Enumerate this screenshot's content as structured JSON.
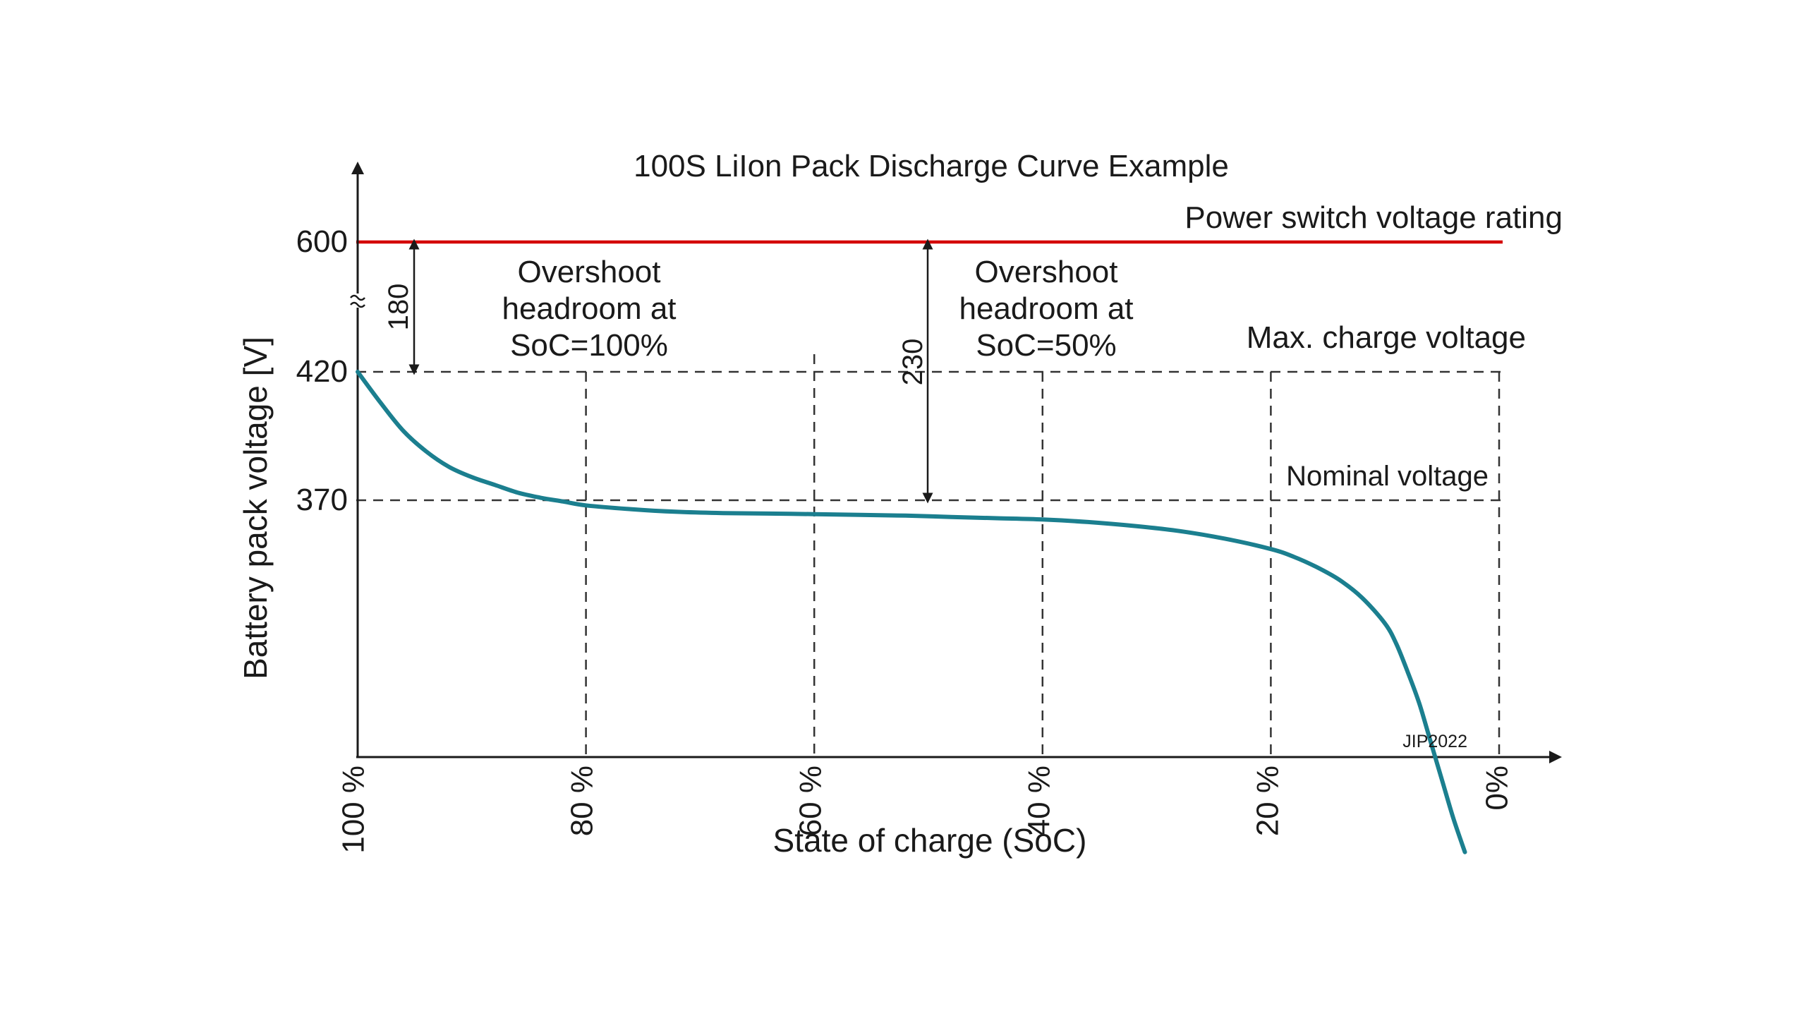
{
  "chart_data": {
    "type": "line",
    "title": "100S LiIon Pack Discharge Curve Example",
    "xlabel": "State of charge (SoC)",
    "ylabel": "Battery pack voltage [V]",
    "x_tick_labels": [
      "100 %",
      "80 %",
      "60 %",
      "40 %",
      "20 %",
      "0%"
    ],
    "x_ticks": [
      100,
      80,
      60,
      40,
      20,
      0
    ],
    "y_tick_labels": [
      "600",
      "420",
      "370"
    ],
    "y_ticks": [
      600,
      420,
      370
    ],
    "x_reversed": true,
    "y_axis_break": true,
    "grid": "dashed",
    "series": [
      {
        "x": [
          100,
          98,
          96,
          94,
          92,
          90,
          88,
          86,
          84,
          82,
          80,
          76,
          72,
          68,
          64,
          60,
          56,
          52,
          48,
          44,
          40,
          36,
          32,
          28,
          24,
          20,
          18,
          16,
          14,
          12,
          10,
          9,
          8,
          7,
          6,
          5,
          4,
          3
        ],
        "y": [
          420,
          408,
          397,
          389,
          383,
          379,
          376,
          373,
          371,
          369.5,
          368,
          366.5,
          365.5,
          365,
          364.8,
          364.6,
          364.3,
          364,
          363.5,
          363,
          362.5,
          361.5,
          360,
          358,
          355,
          351,
          348,
          344,
          339,
          332,
          322,
          314,
          303,
          291,
          276,
          261,
          246,
          233
        ],
        "color": "#1b7f8f"
      }
    ],
    "reference_lines": [
      {
        "label": "Power switch voltage rating",
        "y": 600,
        "color": "#d40000"
      },
      {
        "label": "Max. charge voltage",
        "y": 420
      },
      {
        "label": "Nominal voltage",
        "y": 370
      }
    ],
    "annotations": [
      {
        "value": "180",
        "x": 95,
        "from": 420,
        "to": 600,
        "text": "Overshoot headroom at SoC=100%"
      },
      {
        "value": "230",
        "x": 50,
        "from": 370,
        "to": 600,
        "text": "Overshoot headroom at SoC=50%"
      }
    ],
    "credit": "JIP2022"
  }
}
